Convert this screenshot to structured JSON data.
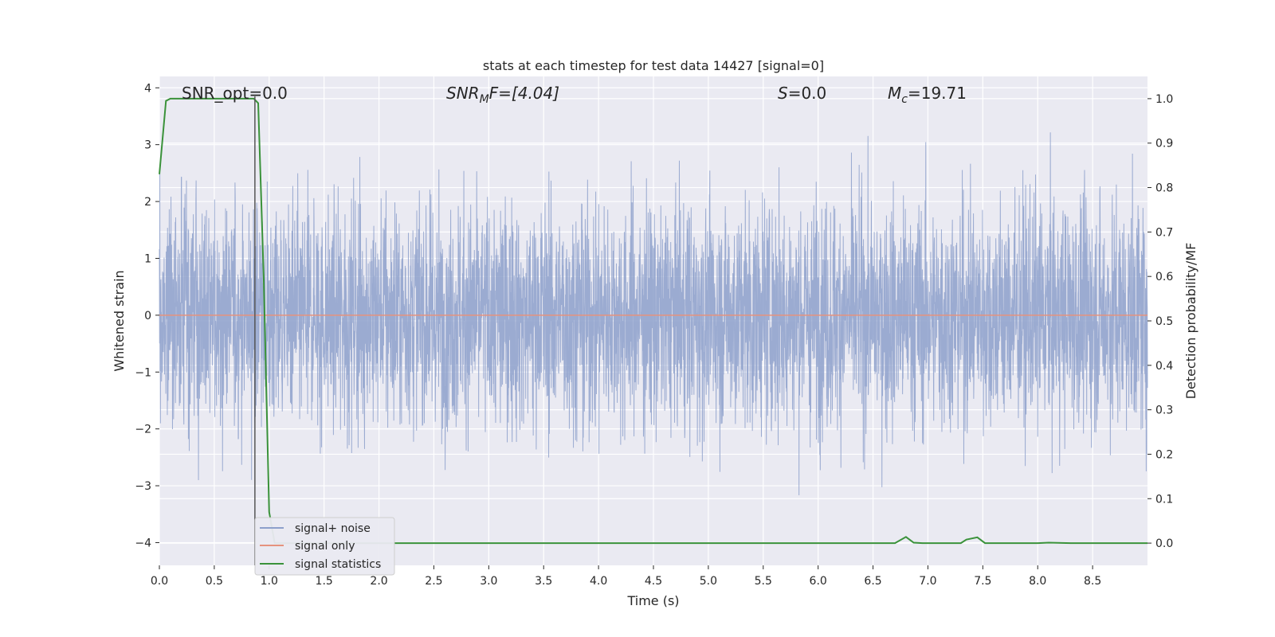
{
  "chart_data": {
    "type": "line",
    "title": "stats at each timestep for test data 14427 [signal=0]",
    "xlabel": "Time (s)",
    "ylabel": "Whitened strain",
    "y2label": "Detection probability/MF",
    "xlim": [
      0.0,
      9.0
    ],
    "ylim": [
      -4.4,
      4.2
    ],
    "y2lim": [
      -0.05,
      1.05
    ],
    "xticks": [
      "0.0",
      "0.5",
      "1.0",
      "1.5",
      "2.0",
      "2.5",
      "3.0",
      "3.5",
      "4.0",
      "4.5",
      "5.0",
      "5.5",
      "6.0",
      "6.5",
      "7.0",
      "7.5",
      "8.0",
      "8.5"
    ],
    "yticks": [
      "4",
      "3",
      "2",
      "1",
      "0",
      "−1",
      "−2",
      "−3",
      "−4"
    ],
    "y2ticks": [
      "1.0",
      "0.9",
      "0.8",
      "0.7",
      "0.6",
      "0.5",
      "0.4",
      "0.3",
      "0.2",
      "0.1",
      "0.0"
    ],
    "grid": true,
    "legend_position": "lower-left",
    "annotations": {
      "snr_opt": "SNR_opt=0.0",
      "snr_mf_main": "SNR",
      "snr_mf_sub": "M",
      "snr_mf_rest": "F=[4.04]",
      "s_main": "S",
      "s_rest": "=0.0",
      "mc_main": "M",
      "mc_sub": "c",
      "mc_rest": "=19.71"
    },
    "marker_x": 0.87,
    "series": [
      {
        "name": "signal+ noise",
        "color": "#8da0cb",
        "axis": "left",
        "description_range": [
          -4.0,
          3.85
        ]
      },
      {
        "name": "signal only",
        "color": "#e5927e",
        "axis": "left",
        "x": [
          0.0,
          9.0
        ],
        "y": [
          0.0,
          0.0
        ]
      },
      {
        "name": "signal statistics",
        "color": "#3a923a",
        "axis": "right",
        "x": [
          0.0,
          0.06,
          0.1,
          0.2,
          0.4,
          0.6,
          0.8,
          0.86,
          0.9,
          0.95,
          1.0,
          1.05,
          1.2,
          2.0,
          3.0,
          4.0,
          5.0,
          6.0,
          6.7,
          6.8,
          6.87,
          6.95,
          7.0,
          7.3,
          7.35,
          7.45,
          7.52,
          7.6,
          8.0,
          8.1,
          8.3,
          9.0
        ],
        "y": [
          0.83,
          0.995,
          1.0,
          1.0,
          1.0,
          1.0,
          1.0,
          1.0,
          0.99,
          0.6,
          0.07,
          0.0,
          0.0,
          0.0,
          0.0,
          0.0,
          0.0,
          0.0,
          0.0,
          0.014,
          0.001,
          0.0,
          0.0,
          0.0,
          0.008,
          0.013,
          0.0,
          0.0,
          0.0,
          0.001,
          0.0,
          0.0
        ]
      }
    ]
  }
}
